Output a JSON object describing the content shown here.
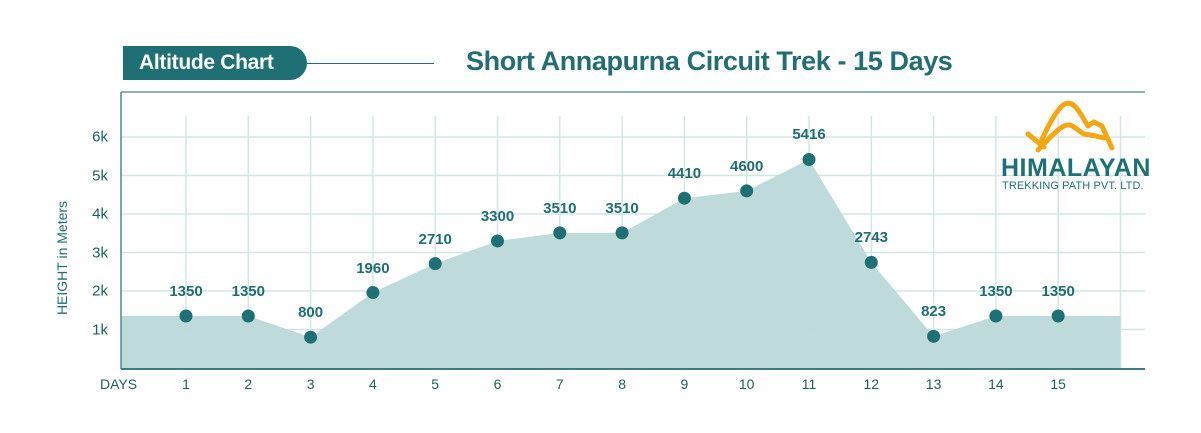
{
  "header": {
    "badge_label": "Altitude Chart",
    "title": "Short Annapurna Circuit Trek - 15 Days"
  },
  "logo": {
    "icon": "mountain-icon",
    "name": "HIMALAYAN",
    "subtitle": "TREKKING PATH PVT. LTD."
  },
  "axes": {
    "ylabel": "HEIGHT in Meters",
    "xlabel": "DAYS",
    "yticks": [
      "1k",
      "2k",
      "3k",
      "4k",
      "5k",
      "6k"
    ],
    "xticks": [
      "1",
      "2",
      "3",
      "4",
      "5",
      "6",
      "7",
      "8",
      "9",
      "10",
      "11",
      "12",
      "13",
      "14",
      "15"
    ]
  },
  "colors": {
    "primary": "#1f7075",
    "area_fill": "#bcd8d8",
    "grid": "#d4e5e6",
    "logo_accent": "#f3a712"
  },
  "chart_data": {
    "type": "area",
    "title": "Short Annapurna Circuit Trek - 15 Days",
    "xlabel": "DAYS",
    "ylabel": "HEIGHT in Meters",
    "categories": [
      1,
      2,
      3,
      4,
      5,
      6,
      7,
      8,
      9,
      10,
      11,
      12,
      13,
      14,
      15
    ],
    "values": [
      1350,
      1350,
      800,
      1960,
      2710,
      3300,
      3510,
      3510,
      4410,
      4600,
      5416,
      2743,
      823,
      1350,
      1350
    ],
    "data_labels": [
      "1350",
      "1350",
      "800",
      "1960",
      "2710",
      "3300",
      "3510",
      "3510",
      "4410",
      "4600",
      "5416",
      "2743",
      "823",
      "1350",
      "1350"
    ],
    "ylim": [
      0,
      6500
    ],
    "yticks": [
      1000,
      2000,
      3000,
      4000,
      5000,
      6000
    ],
    "ytick_labels": [
      "1k",
      "2k",
      "3k",
      "4k",
      "5k",
      "6k"
    ],
    "grid": true,
    "legend": null
  }
}
